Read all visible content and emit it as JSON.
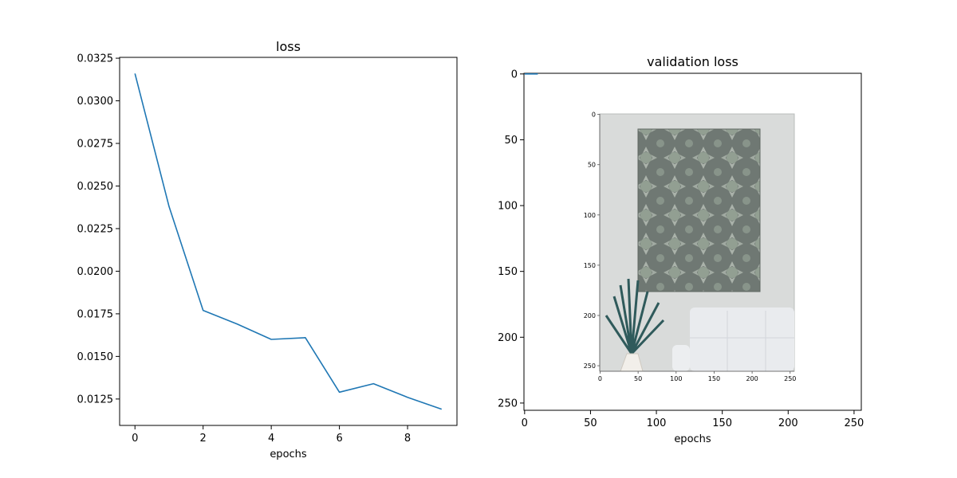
{
  "chart_data": [
    {
      "type": "line",
      "title": "loss",
      "xlabel": "epochs",
      "ylabel": "",
      "xlim": [
        -0.45,
        9.45
      ],
      "ylim": [
        0.01095,
        0.03255
      ],
      "xticks": [
        0,
        2,
        4,
        6,
        8
      ],
      "yticks": [
        0.0125,
        0.015,
        0.0175,
        0.02,
        0.0225,
        0.025,
        0.0275,
        0.03,
        0.0325
      ],
      "ytick_labels": [
        "0.0125",
        "0.0150",
        "0.0175",
        "0.0200",
        "0.0225",
        "0.0250",
        "0.0275",
        "0.0300",
        "0.0325"
      ],
      "grid": false,
      "series": [
        {
          "color": "#1f77b4",
          "x": [
            0,
            1,
            2,
            3,
            4,
            5,
            6,
            7,
            8,
            9
          ],
          "y": [
            0.0316,
            0.0238,
            0.0177,
            0.0169,
            0.016,
            0.0161,
            0.0129,
            0.0134,
            0.0126,
            0.0119
          ]
        }
      ]
    },
    {
      "type": "line",
      "title": "validation loss",
      "xlabel": "epochs",
      "ylabel": "",
      "xlim": [
        -0.5,
        255.5
      ],
      "ylim": [
        255.5,
        -0.5
      ],
      "xticks": [
        0,
        50,
        100,
        150,
        200,
        250
      ],
      "yticks": [
        0,
        50,
        100,
        150,
        200,
        250
      ],
      "grid": false,
      "series": [
        {
          "color": "#1f77b4",
          "x": [
            0,
            10
          ],
          "y": [
            0.0,
            0.0
          ]
        }
      ],
      "embedded_image": {
        "description_icon": "picture-icon",
        "xticks": [
          0,
          50,
          100,
          150,
          200,
          250
        ],
        "yticks": [
          0,
          50,
          100,
          150,
          200,
          250
        ]
      }
    }
  ]
}
